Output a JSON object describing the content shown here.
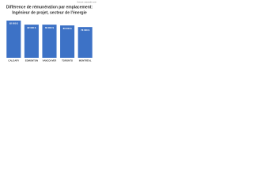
{
  "chart_data": {
    "type": "bar",
    "source": "Source: payscale.com",
    "title": "Différence de rémunération par emplacement:",
    "subtitle": "Ingénieur de projet, secteur de l'énergie",
    "categories": [
      "CALGARY",
      "EDMONTON",
      "VANCOUVER",
      "TORONTO",
      "MONTRÉAL"
    ],
    "values": [
      92000,
      82000,
      82000,
      80000,
      76000
    ],
    "value_labels": [
      "92 000 $",
      "82 000 $",
      "82 000 $",
      "80 000 $",
      "76 000 $"
    ],
    "color": "#3d72c6"
  }
}
